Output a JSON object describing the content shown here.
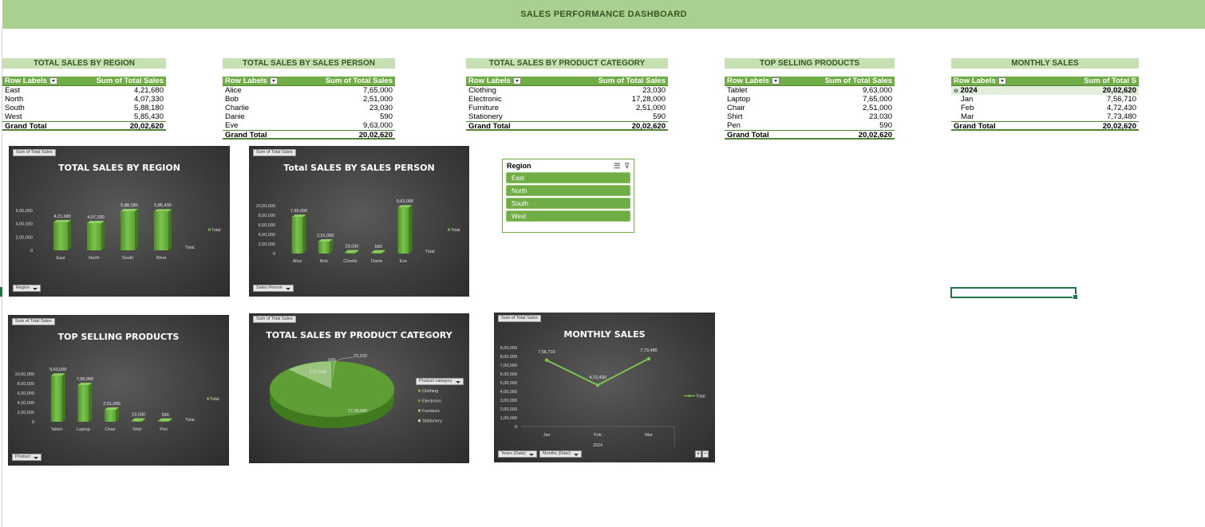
{
  "dashboard": {
    "title": "SALES PERFORMANCE DASHBOARD"
  },
  "pivots": {
    "region": {
      "title": "TOTAL SALES BY REGION",
      "col1": "Row Labels",
      "col2": "Sum of Total Sales",
      "rows": [
        [
          "East",
          "4,21,680"
        ],
        [
          "North",
          "4,07,330"
        ],
        [
          "South",
          "5,88,180"
        ],
        [
          "West",
          "5,85,430"
        ]
      ],
      "total": [
        "Grand Total",
        "20,02,620"
      ]
    },
    "person": {
      "title": "TOTAL SALES BY SALES PERSON",
      "col1": "Row Labels",
      "col2": "Sum of Total Sales",
      "rows": [
        [
          "Alice",
          "7,65,000"
        ],
        [
          "Bob",
          "2,51,000"
        ],
        [
          "Charlie",
          "23,030"
        ],
        [
          "Danie",
          "590"
        ],
        [
          "Eve",
          "9,63,000"
        ]
      ],
      "total": [
        "Grand Total",
        "20,02,620"
      ]
    },
    "category": {
      "title": "TOTAL SALES BY PRODUCT CATEGORY",
      "col1": "Row Labels",
      "col2": "Sum of Total Sales",
      "rows": [
        [
          "Clothing",
          "23,030"
        ],
        [
          "Electronic",
          "17,28,000"
        ],
        [
          "Furniture",
          "2,51,000"
        ],
        [
          "Stationery",
          "590"
        ]
      ],
      "total": [
        "Grand Total",
        "20,02,620"
      ]
    },
    "products": {
      "title": "TOP SELLING PRODUCTS",
      "col1": "Row Labels",
      "col2": "Sum of Total Sales",
      "rows": [
        [
          "Tablet",
          "9,63,000"
        ],
        [
          "Laptop",
          "7,65,000"
        ],
        [
          "Chair",
          "2,51,000"
        ],
        [
          "Shirt",
          "23,030"
        ],
        [
          "Pen",
          "590"
        ]
      ],
      "total": [
        "Grand Total",
        "20,02,620"
      ]
    },
    "monthly": {
      "title": "MONTHLY SALES",
      "col1": "Row Labels",
      "col2": "Sum of Total S",
      "year": [
        "2024",
        "20,02,620"
      ],
      "rows": [
        [
          "Jan",
          "7,56,710"
        ],
        [
          "Feb",
          "4,72,430"
        ],
        [
          "Mar",
          "7,73,480"
        ]
      ],
      "total": [
        "Grand Total",
        "20,02,620"
      ]
    }
  },
  "slicer": {
    "title": "Region",
    "items": [
      "East",
      "North",
      "South",
      "West"
    ]
  },
  "chart_data": [
    {
      "type": "bar",
      "title": "TOTAL SALES BY REGION",
      "categories": [
        "East",
        "North",
        "South",
        "West"
      ],
      "series": [
        {
          "name": "Total",
          "values": [
            421680,
            407330,
            588180,
            585430
          ]
        }
      ],
      "value_labels": [
        "4,21,680",
        "4,07,330",
        "5,88,180",
        "5,85,430"
      ],
      "yticks": [
        "0",
        "2,00,000",
        "4,00,000",
        "6,00,000"
      ],
      "ylim": [
        0,
        600000
      ],
      "field_button": "Sum of Total Sales",
      "axis_button": "Region",
      "legend": "right",
      "axis_title": "Total"
    },
    {
      "type": "bar",
      "title": "Total SALES BY SALES PERSON",
      "categories": [
        "Alice",
        "Bob",
        "Charlie",
        "Danie",
        "Eve"
      ],
      "series": [
        {
          "name": "Total",
          "values": [
            765000,
            251000,
            23030,
            590,
            963000
          ]
        }
      ],
      "value_labels": [
        "7,65,000",
        "2,51,000",
        "23,030",
        "590",
        "9,63,000"
      ],
      "yticks": [
        "0",
        "2,00,000",
        "4,00,000",
        "6,00,000",
        "8,00,000",
        "10,00,000"
      ],
      "ylim": [
        0,
        1000000
      ],
      "field_button": "Sum of Total Sales",
      "axis_button": "Sales Person",
      "legend": "right",
      "axis_title": "Total"
    },
    {
      "type": "bar",
      "title": "TOP SELLING PRODUCTS",
      "categories": [
        "Tablet",
        "Laptop",
        "Chair",
        "Shirt",
        "Pen"
      ],
      "series": [
        {
          "name": "Total",
          "values": [
            963000,
            765000,
            251000,
            23030,
            590
          ]
        }
      ],
      "value_labels": [
        "9,63,000",
        "7,65,000",
        "2,51,000",
        "23,030",
        "590"
      ],
      "yticks": [
        "0",
        "2,00,000",
        "4,00,000",
        "6,00,000",
        "8,00,000",
        "10,00,000"
      ],
      "ylim": [
        0,
        1000000
      ],
      "field_button": "Sum of Total Sales",
      "axis_button": "Product",
      "legend": "right",
      "axis_title": "Total"
    },
    {
      "type": "pie",
      "title": "TOTAL SALES BY PRODUCT CATEGORY",
      "categories": [
        "Clothing",
        "Electronic",
        "Furniture",
        "Stationery"
      ],
      "values": [
        23030,
        1728000,
        251000,
        590
      ],
      "value_labels": [
        "23,030",
        "17,28,000",
        "2,51,000",
        "590"
      ],
      "field_button": "Sum of Total Sales",
      "legend_button": "Product category",
      "legend": "right"
    },
    {
      "type": "line",
      "title": "MONTHLY SALES",
      "categories": [
        "Jan",
        "Feb",
        "Mar"
      ],
      "series": [
        {
          "name": "Total",
          "values": [
            756710,
            472430,
            773480
          ]
        }
      ],
      "value_labels": [
        "7,56,710",
        "4,72,430",
        "7,73,480"
      ],
      "yticks": [
        "0",
        "1,00,000",
        "2,00,000",
        "3,00,000",
        "4,00,000",
        "5,00,000",
        "6,00,000",
        "7,00,000",
        "8,00,000",
        "9,00,000"
      ],
      "ylim": [
        0,
        900000
      ],
      "xgroup": "2024",
      "field_button": "Sum of Total Sales",
      "axis_buttons": [
        "Years (Date)",
        "Months (Date)"
      ],
      "legend": "right"
    }
  ],
  "colors": {
    "banner": "#a9d08e",
    "title_fill": "#c6e0b4",
    "pivot_header": "#70ad47",
    "bar": "#6aab3f",
    "pie_main": "#5e9e34",
    "pie_light": "#9bc47e"
  }
}
